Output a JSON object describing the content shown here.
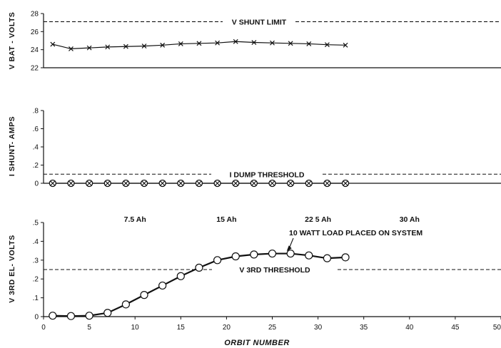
{
  "chart_data": [
    {
      "type": "line",
      "ylabel": "V BAT - VOLTS",
      "ylim": [
        22,
        28
      ],
      "yticks": [
        "22",
        "24",
        "26",
        "28"
      ],
      "reference_lines": [
        {
          "label": "V SHUNT LIMIT",
          "y": 27.1
        }
      ],
      "series": [
        {
          "marker": "x",
          "x": [
            1,
            3,
            5,
            7,
            9,
            11,
            13,
            15,
            17,
            19,
            21,
            23,
            25,
            27,
            29,
            31,
            33
          ],
          "values": [
            24.6,
            24.1,
            24.2,
            24.3,
            24.35,
            24.4,
            24.5,
            24.65,
            24.7,
            24.75,
            24.9,
            24.8,
            24.75,
            24.7,
            24.65,
            24.55,
            24.5
          ]
        }
      ]
    },
    {
      "type": "line",
      "ylabel": "I SHUNT- AMPS",
      "ylim": [
        0,
        0.8
      ],
      "yticks": [
        "0",
        ".2",
        ".4",
        ".6",
        ".8"
      ],
      "reference_lines": [
        {
          "label": "I DUMP THRESHOLD",
          "y": 0.1
        }
      ],
      "series": [
        {
          "marker": "circle-x",
          "x": [
            1,
            3,
            5,
            7,
            9,
            11,
            13,
            15,
            17,
            19,
            21,
            23,
            25,
            27,
            29,
            31,
            33
          ],
          "values": [
            0,
            0,
            0,
            0,
            0,
            0,
            0,
            0,
            0,
            0,
            0,
            0,
            0,
            0,
            0,
            0,
            0
          ]
        }
      ]
    },
    {
      "type": "line",
      "ylabel": "V 3RD EL- VOLTS",
      "xlabel": "ORBIT NUMBER",
      "ylim": [
        0,
        0.5
      ],
      "xlim": [
        0,
        50
      ],
      "yticks": [
        "0",
        ".1",
        ".2",
        ".3",
        ".4",
        ".5"
      ],
      "xticks": [
        "0",
        "5",
        "10",
        "15",
        "20",
        "25",
        "30",
        "35",
        "40",
        "45",
        "50"
      ],
      "reference_lines": [
        {
          "label": "V 3RD THRESHOLD",
          "y": 0.25
        }
      ],
      "top_labels": [
        {
          "text": "7.5 Ah",
          "x": 10
        },
        {
          "text": "15 Ah",
          "x": 20
        },
        {
          "text": "22 5 Ah",
          "x": 30
        },
        {
          "text": "30 Ah",
          "x": 40
        }
      ],
      "annotations": [
        {
          "text": "10 WATT LOAD PLACED ON SYSTEM",
          "x": 26.5,
          "y": 0.34
        }
      ],
      "series": [
        {
          "marker": "circle",
          "x": [
            1,
            3,
            5,
            7,
            9,
            11,
            13,
            15,
            17,
            19,
            21,
            23,
            25,
            27,
            29,
            31,
            33
          ],
          "values": [
            0.005,
            0.003,
            0.005,
            0.02,
            0.065,
            0.115,
            0.165,
            0.215,
            0.26,
            0.3,
            0.32,
            0.33,
            0.335,
            0.335,
            0.325,
            0.31,
            0.315
          ]
        }
      ]
    }
  ]
}
